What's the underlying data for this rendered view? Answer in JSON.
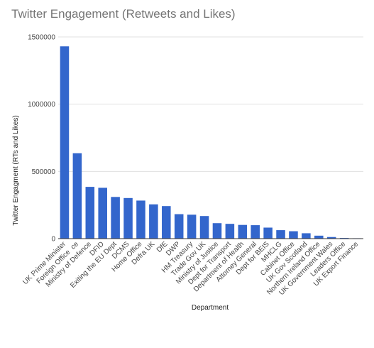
{
  "chart_data": {
    "type": "bar",
    "title": "Twitter Engagement (Retweets and Likes)",
    "xlabel": "Department",
    "ylabel": "Twitter Engagment (RTs and Likes)",
    "ylim": [
      0,
      1500000
    ],
    "yticks": [
      "0",
      "500000",
      "1000000",
      "1500000"
    ],
    "ytick_values": [
      0,
      500000,
      1000000,
      1500000
    ],
    "grid": true,
    "bar_color": "#3366cc",
    "categories": [
      "UK Prime Minister",
      "Foreign Office  ce",
      "Ministry of Defence",
      "DFID",
      "Exiting the EU Dept",
      "DCMS",
      "Home Office",
      "Defra UK",
      "DfE",
      "DWP",
      "HM Treasury",
      "Trade Gov UK",
      "Ministry of Justice",
      "Dept for Transport",
      "Department of Health",
      "Attorney General",
      "Dept for BEIS",
      "MHCLG",
      "Cabinet Office",
      "UK Gov Scotland",
      "Northern Ireland Office",
      "UK Government Wales",
      "Leaders Office",
      "UK Export Finance"
    ],
    "values": [
      1430000,
      635000,
      385000,
      378000,
      310000,
      302000,
      283000,
      255000,
      242000,
      182000,
      178000,
      168000,
      115000,
      110000,
      102000,
      100000,
      82000,
      63000,
      55000,
      40000,
      22000,
      12000,
      5000,
      3000
    ]
  }
}
